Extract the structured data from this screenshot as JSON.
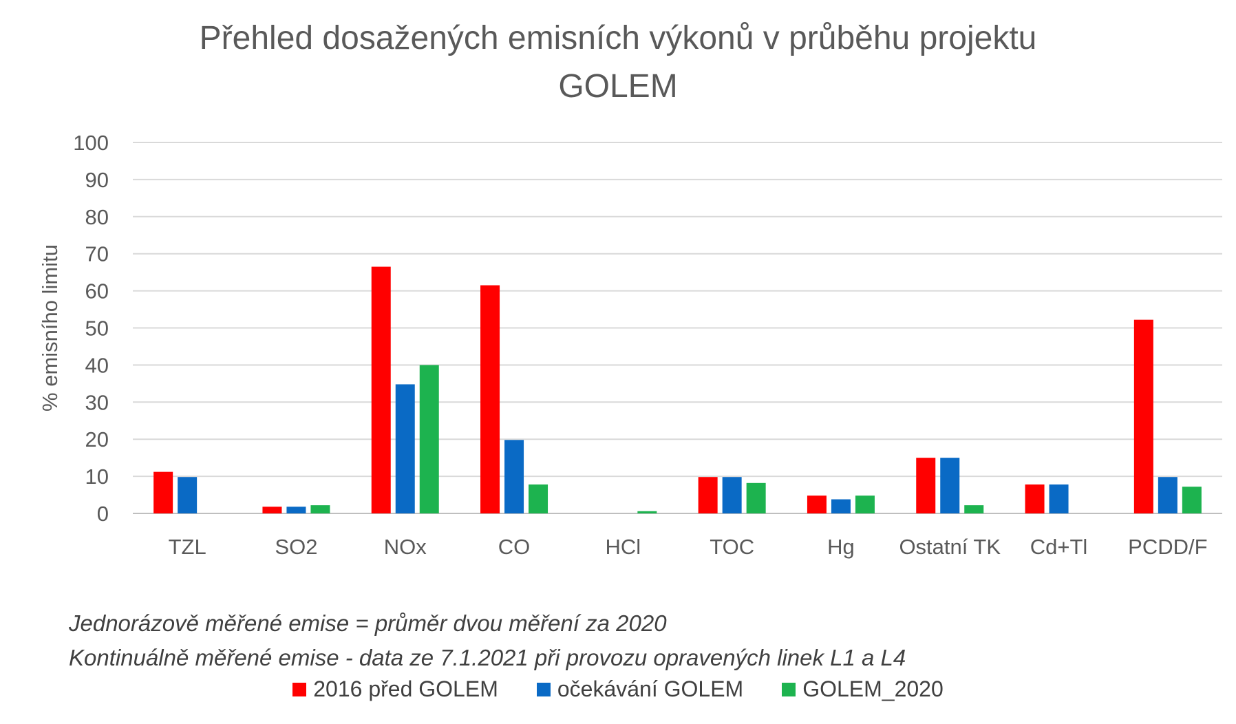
{
  "chart_data": {
    "type": "bar",
    "title": "Přehled dosažených emisních výkonů v průběhu projektu",
    "title_line2": "GOLEM",
    "xlabel": "",
    "ylabel": "% emisního limitu",
    "ylim": [
      0,
      100
    ],
    "yticks": [
      0,
      10,
      20,
      30,
      40,
      50,
      60,
      70,
      80,
      90,
      100
    ],
    "grid": true,
    "legend_position": "bottom",
    "categories": [
      "TZL",
      "SO2",
      "NOx",
      "CO",
      "HCl",
      "TOC",
      "Hg",
      "Ostatní TK",
      "Cd+Tl",
      "PCDD/F"
    ],
    "series": [
      {
        "name": "2016 před GOLEM",
        "color": "#ff0000",
        "values": [
          11.2,
          1.8,
          66.5,
          61.5,
          0,
          9.8,
          4.8,
          15,
          7.8,
          52.2
        ]
      },
      {
        "name": "očekávání GOLEM",
        "color": "#0a6ac5",
        "values": [
          9.8,
          1.8,
          34.8,
          19.8,
          0,
          9.8,
          3.8,
          15,
          7.8,
          9.8
        ]
      },
      {
        "name": "GOLEM_2020",
        "color": "#1db34f",
        "values": [
          0,
          2.2,
          40,
          7.8,
          0.6,
          8.2,
          4.8,
          2.2,
          0,
          7.2
        ]
      }
    ],
    "notes": [
      "Jednorázově měřené emise = průměr dvou měření za 2020",
      "Kontinuálně měřené emise - data ze 7.1.2021 při provozu opravených linek L1 a L4"
    ]
  }
}
